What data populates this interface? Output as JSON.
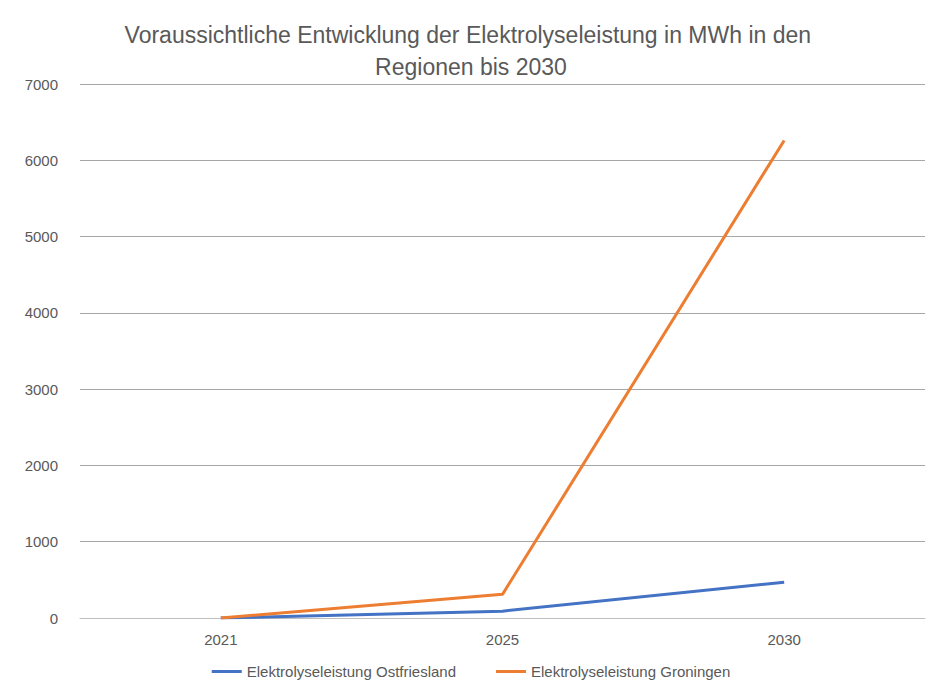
{
  "chart_data": {
    "type": "line",
    "title": "Voraussichtliche Entwicklung der Elektrolyseleistung in MWh in den Regionen bis 2030",
    "categories": [
      "2021",
      "2025",
      "2030"
    ],
    "series": [
      {
        "name": "Elektrolyseleistung Ostfriesland",
        "color": "#4472c4",
        "values": [
          0,
          90,
          470
        ]
      },
      {
        "name": "Elektrolyseleistung Groningen",
        "color": "#ed7d31",
        "values": [
          0,
          310,
          6260
        ]
      }
    ],
    "ylim": [
      0,
      7000
    ],
    "yticks": [
      0,
      1000,
      2000,
      3000,
      4000,
      5000,
      6000,
      7000
    ],
    "grid": true,
    "legend": "bottom"
  }
}
